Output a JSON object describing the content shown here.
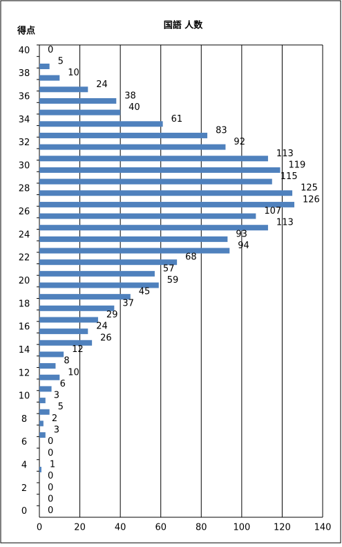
{
  "chart_data": {
    "type": "hbar",
    "title": "国語 人数",
    "y_label": "得点",
    "categories": [
      "40",
      null,
      "38",
      null,
      "36",
      null,
      "34",
      null,
      "32",
      null,
      "30",
      null,
      "28",
      null,
      "26",
      null,
      "24",
      null,
      "22",
      null,
      "20",
      null,
      "18",
      null,
      "16",
      null,
      "14",
      null,
      "12",
      null,
      "10",
      null,
      "8",
      null,
      "6",
      null,
      "4",
      null,
      "2",
      null,
      "0"
    ],
    "values": [
      0,
      5,
      10,
      24,
      38,
      40,
      61,
      83,
      92,
      113,
      119,
      115,
      125,
      126,
      107,
      113,
      93,
      94,
      68,
      57,
      59,
      45,
      37,
      29,
      24,
      26,
      12,
      8,
      10,
      6,
      3,
      5,
      2,
      3,
      0,
      0,
      1,
      0,
      0,
      0,
      0
    ],
    "color": "#4f81bd",
    "xlim": [
      0,
      140
    ],
    "xticks": [
      0,
      20,
      40,
      60,
      80,
      100,
      120,
      140
    ],
    "grid": true
  }
}
